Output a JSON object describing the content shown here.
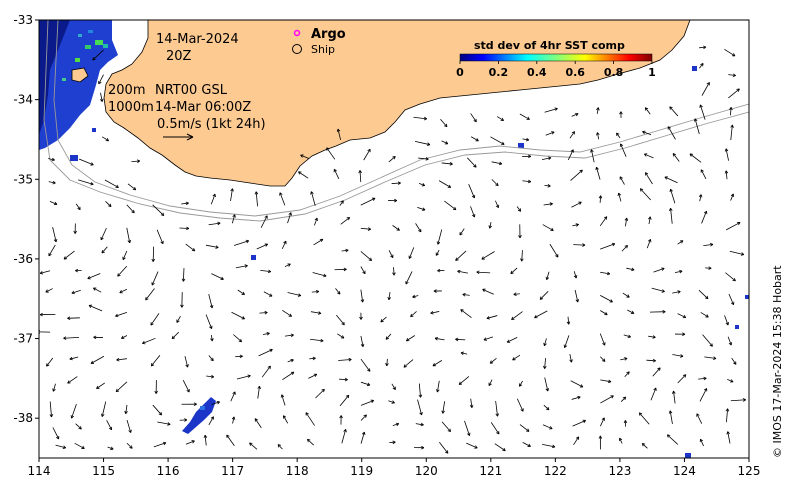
{
  "map": {
    "date": "14-Mar-2024",
    "hour": "20Z",
    "depth_labels": [
      "200m",
      "1000m"
    ],
    "product": "NRT00 GSL",
    "vector_time": "14-Mar 06:00Z",
    "speed_scale": "0.5m/s (1kt 24h)",
    "legend": {
      "argo_label": "Argo",
      "ship_label": "Ship",
      "argo_color": "#ff00ff"
    },
    "credit": "© IMOS 17-Mar-2024 15:38 Hobart",
    "colors": {
      "land": "#fdca92",
      "ocean": "#ffffff",
      "coast": "#000000",
      "isobath": "#999999"
    }
  },
  "chart_data": {
    "type": "map",
    "x_ticks": [
      "114",
      "115",
      "116",
      "117",
      "118",
      "119",
      "120",
      "121",
      "122",
      "123",
      "124",
      "125"
    ],
    "y_ticks": [
      "-33",
      "-34",
      "-35",
      "-36",
      "-37",
      "-38"
    ],
    "xlim": [
      114,
      125
    ],
    "ylim": [
      -38.5,
      -33
    ],
    "colorbar": {
      "title": "std dev of 4hr SST comp",
      "ticks": [
        "0",
        "0.2",
        "0.4",
        "0.6",
        "0.8",
        "1"
      ],
      "range": [
        0,
        1
      ],
      "colormap": "jet"
    }
  }
}
